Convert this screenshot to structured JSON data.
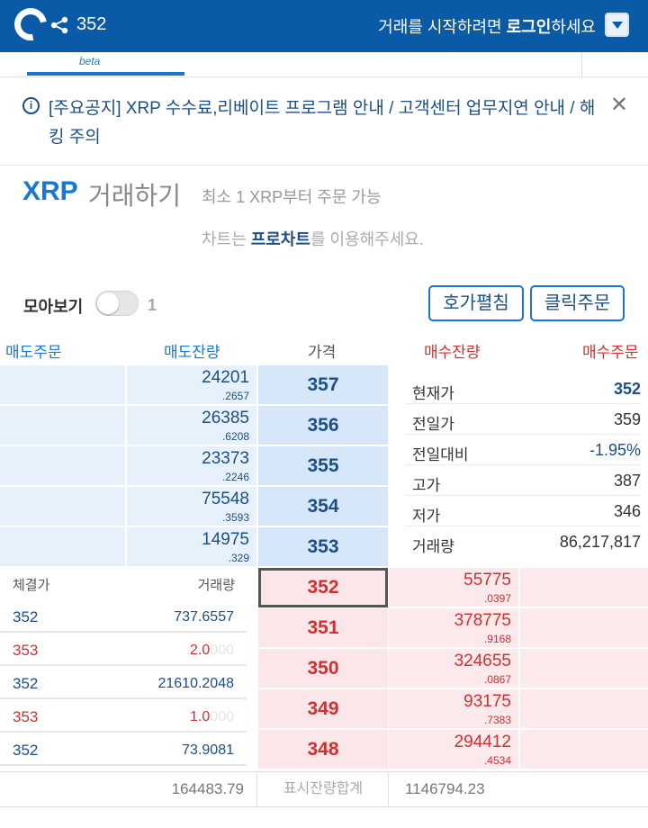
{
  "header": {
    "price": "352",
    "login_prefix": "거래를 시작하려면 ",
    "login_bold": "로그인",
    "login_suffix": "하세요"
  },
  "tabs": {
    "active_badge": "beta"
  },
  "notice": {
    "text": "[주요공지] XRP 수수료,리베이트 프로그램 안내 / 고객센터 업무지연 안내 / 해킹 주의"
  },
  "trade_title": {
    "coin": "XRP",
    "label": "거래하기",
    "min_order": "최소 1 XRP부터 주문 가능",
    "chart_prefix": "차트는 ",
    "chart_link": "프로차트",
    "chart_suffix": "를 이용해주세요."
  },
  "controls": {
    "moabogi_label": "모아보기",
    "moabogi_value": "1",
    "spread_button": "호가펼침",
    "click_order_button": "클릭주문"
  },
  "columns": {
    "ask_order": "매도주문",
    "ask_remaining": "매도잔량",
    "price": "가격",
    "bid_remaining": "매수잔량",
    "bid_order": "매수주문"
  },
  "asks": [
    {
      "qty_int": "24201",
      "qty_dec": ".2657",
      "price": "357"
    },
    {
      "qty_int": "26385",
      "qty_dec": ".6208",
      "price": "356"
    },
    {
      "qty_int": "23373",
      "qty_dec": ".2246",
      "price": "355"
    },
    {
      "qty_int": "75548",
      "qty_dec": ".3593",
      "price": "354"
    },
    {
      "qty_int": "14975",
      "qty_dec": ".329",
      "price": "353"
    }
  ],
  "bids": [
    {
      "price": "352",
      "qty_int": "55775",
      "qty_dec": ".0397"
    },
    {
      "price": "351",
      "qty_int": "378775",
      "qty_dec": ".9168"
    },
    {
      "price": "350",
      "qty_int": "324655",
      "qty_dec": ".0867"
    },
    {
      "price": "349",
      "qty_int": "93175",
      "qty_dec": ".7383"
    },
    {
      "price": "348",
      "qty_int": "294412",
      "qty_dec": ".4534"
    }
  ],
  "stats": [
    {
      "label": "현재가",
      "value": "352"
    },
    {
      "label": "전일가",
      "value": "359"
    },
    {
      "label": "전일대비",
      "value": "-1.95%"
    },
    {
      "label": "고가",
      "value": "387"
    },
    {
      "label": "저가",
      "value": "346"
    },
    {
      "label": "거래량",
      "value": "86,217,817"
    }
  ],
  "trades": {
    "header_price": "체결가",
    "header_volume": "거래량",
    "rows": [
      {
        "price": "352",
        "vol": "737.6557",
        "vol_pad": ""
      },
      {
        "price": "353",
        "vol": "2.0",
        "vol_pad": "000"
      },
      {
        "price": "352",
        "vol": "21610.2048",
        "vol_pad": ""
      },
      {
        "price": "353",
        "vol": "1.0",
        "vol_pad": "000"
      },
      {
        "price": "352",
        "vol": "73.9081",
        "vol_pad": ""
      }
    ]
  },
  "footer": {
    "ask_total": "164483.79",
    "label": "표시잔량합계",
    "bid_total": "1146794.23"
  },
  "colors": {
    "brand_blue": "#0a5aa8",
    "ask_blue": "#1c4f86",
    "bid_red": "#d32f2f"
  }
}
